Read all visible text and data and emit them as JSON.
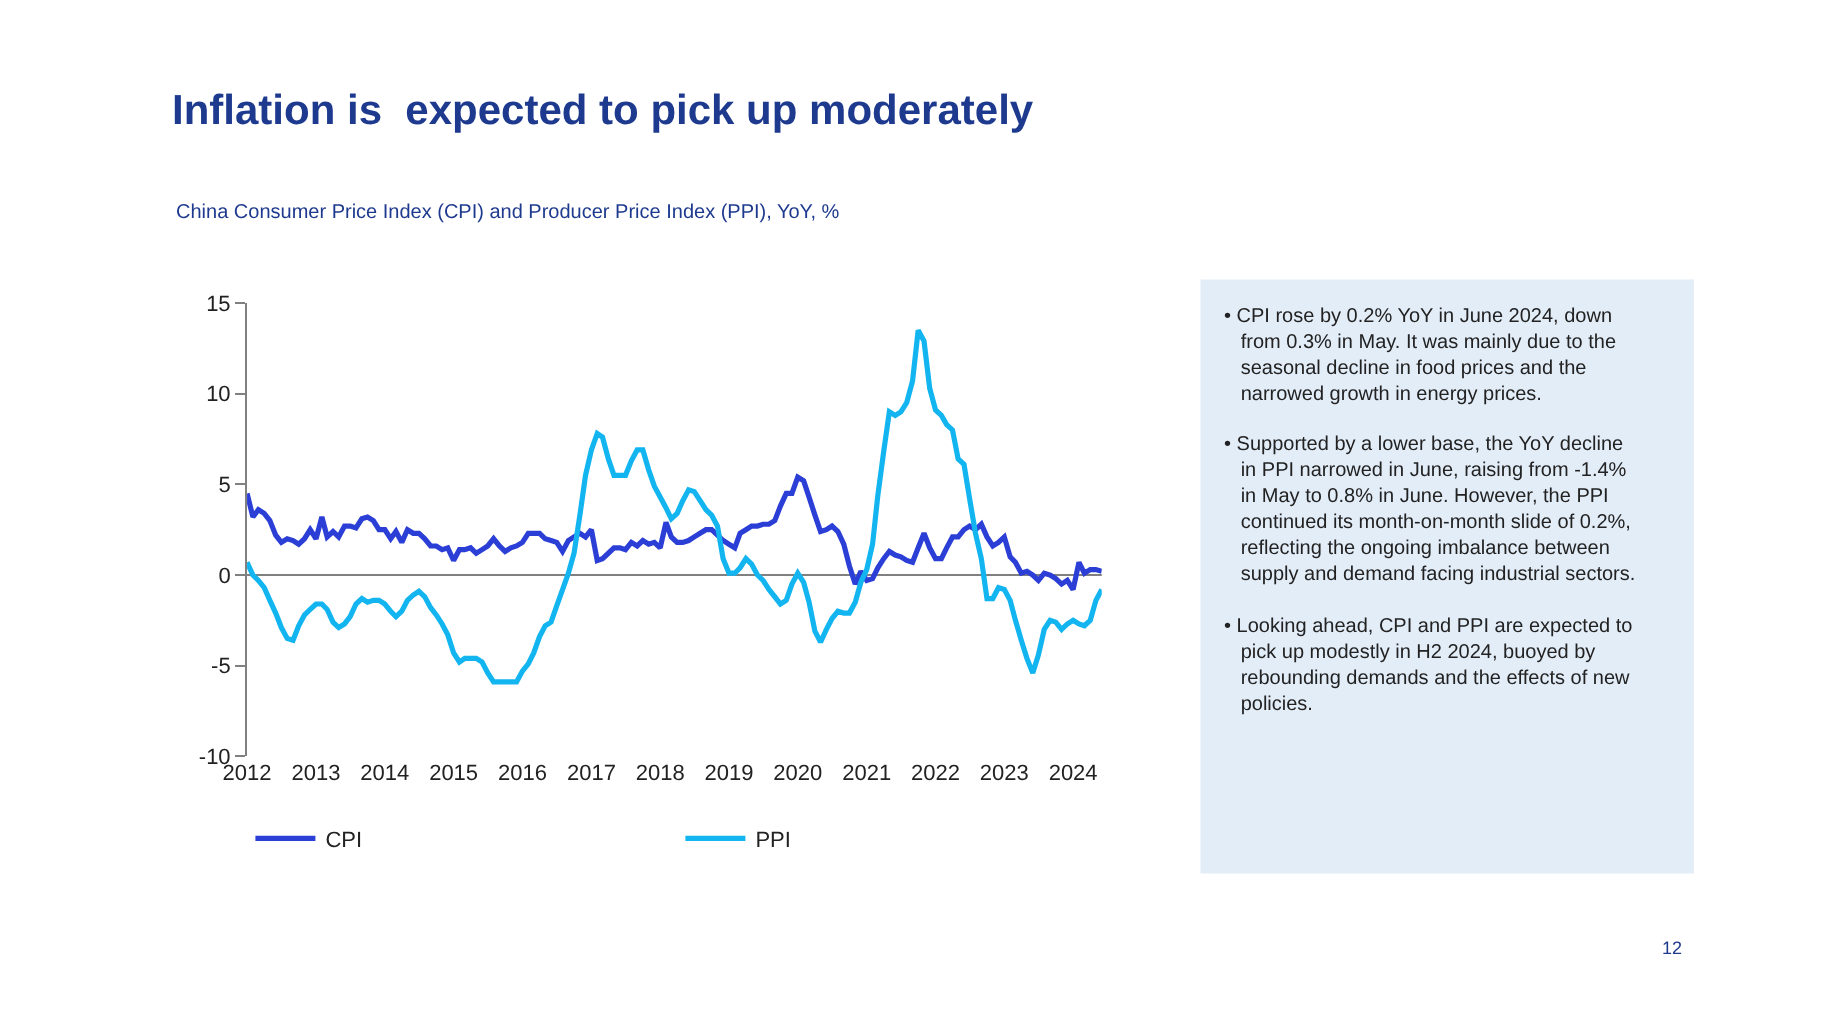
{
  "chart_data": {
    "type": "line",
    "title": "Inflation is  expected to pick up moderately",
    "subtitle": "China Consumer Price Index (CPI) and Producer Price Index (PPI), YoY, %",
    "x": [
      "2012-01",
      "2012-02",
      "2012-03",
      "2012-04",
      "2012-05",
      "2012-06",
      "2012-07",
      "2012-08",
      "2012-09",
      "2012-10",
      "2012-11",
      "2012-12",
      "2013-01",
      "2013-02",
      "2013-03",
      "2013-04",
      "2013-05",
      "2013-06",
      "2013-07",
      "2013-08",
      "2013-09",
      "2013-10",
      "2013-11",
      "2013-12",
      "2014-01",
      "2014-02",
      "2014-03",
      "2014-04",
      "2014-05",
      "2014-06",
      "2014-07",
      "2014-08",
      "2014-09",
      "2014-10",
      "2014-11",
      "2014-12",
      "2015-01",
      "2015-02",
      "2015-03",
      "2015-04",
      "2015-05",
      "2015-06",
      "2015-07",
      "2015-08",
      "2015-09",
      "2015-10",
      "2015-11",
      "2015-12",
      "2016-01",
      "2016-02",
      "2016-03",
      "2016-04",
      "2016-05",
      "2016-06",
      "2016-07",
      "2016-08",
      "2016-09",
      "2016-10",
      "2016-11",
      "2016-12",
      "2017-01",
      "2017-02",
      "2017-03",
      "2017-04",
      "2017-05",
      "2017-06",
      "2017-07",
      "2017-08",
      "2017-09",
      "2017-10",
      "2017-11",
      "2017-12",
      "2018-01",
      "2018-02",
      "2018-03",
      "2018-04",
      "2018-05",
      "2018-06",
      "2018-07",
      "2018-08",
      "2018-09",
      "2018-10",
      "2018-11",
      "2018-12",
      "2019-01",
      "2019-02",
      "2019-03",
      "2019-04",
      "2019-05",
      "2019-06",
      "2019-07",
      "2019-08",
      "2019-09",
      "2019-10",
      "2019-11",
      "2019-12",
      "2020-01",
      "2020-02",
      "2020-03",
      "2020-04",
      "2020-05",
      "2020-06",
      "2020-07",
      "2020-08",
      "2020-09",
      "2020-10",
      "2020-11",
      "2020-12",
      "2021-01",
      "2021-02",
      "2021-03",
      "2021-04",
      "2021-05",
      "2021-06",
      "2021-07",
      "2021-08",
      "2021-09",
      "2021-10",
      "2021-11",
      "2021-12",
      "2022-01",
      "2022-02",
      "2022-03",
      "2022-04",
      "2022-05",
      "2022-06",
      "2022-07",
      "2022-08",
      "2022-09",
      "2022-10",
      "2022-11",
      "2022-12",
      "2023-01",
      "2023-02",
      "2023-03",
      "2023-04",
      "2023-05",
      "2023-06",
      "2023-07",
      "2023-08",
      "2023-09",
      "2023-10",
      "2023-11",
      "2023-12",
      "2024-01",
      "2024-02",
      "2024-03",
      "2024-04",
      "2024-05",
      "2024-06"
    ],
    "series": [
      {
        "name": "CPI",
        "color": "#2b3fd6",
        "values": [
          4.5,
          3.2,
          3.6,
          3.4,
          3.0,
          2.2,
          1.8,
          2.0,
          1.9,
          1.7,
          2.0,
          2.5,
          2.0,
          3.2,
          2.1,
          2.4,
          2.1,
          2.7,
          2.7,
          2.6,
          3.1,
          3.2,
          3.0,
          2.5,
          2.5,
          2.0,
          2.4,
          1.8,
          2.5,
          2.3,
          2.3,
          2.0,
          1.6,
          1.6,
          1.4,
          1.5,
          0.8,
          1.4,
          1.4,
          1.5,
          1.2,
          1.4,
          1.6,
          2.0,
          1.6,
          1.3,
          1.5,
          1.6,
          1.8,
          2.3,
          2.3,
          2.3,
          2.0,
          1.9,
          1.8,
          1.3,
          1.9,
          2.1,
          2.3,
          2.1,
          2.5,
          0.8,
          0.9,
          1.2,
          1.5,
          1.5,
          1.4,
          1.8,
          1.6,
          1.9,
          1.7,
          1.8,
          1.5,
          2.9,
          2.1,
          1.8,
          1.8,
          1.9,
          2.1,
          2.3,
          2.5,
          2.5,
          2.2,
          1.9,
          1.7,
          1.5,
          2.3,
          2.5,
          2.7,
          2.7,
          2.8,
          2.8,
          3.0,
          3.8,
          4.5,
          4.5,
          5.4,
          5.2,
          4.3,
          3.3,
          2.4,
          2.5,
          2.7,
          2.4,
          1.7,
          0.5,
          -0.5,
          0.2,
          -0.3,
          -0.2,
          0.4,
          0.9,
          1.3,
          1.1,
          1.0,
          0.8,
          0.7,
          1.5,
          2.3,
          1.5,
          0.9,
          0.9,
          1.5,
          2.1,
          2.1,
          2.5,
          2.7,
          2.5,
          2.8,
          2.1,
          1.6,
          1.8,
          2.1,
          1.0,
          0.7,
          0.1,
          0.2,
          0.0,
          -0.3,
          0.1,
          0.0,
          -0.2,
          -0.5,
          -0.3,
          -0.8,
          0.7,
          0.1,
          0.3,
          0.3,
          0.2
        ]
      },
      {
        "name": "PPI",
        "color": "#13b5f0",
        "values": [
          0.7,
          0.0,
          -0.3,
          -0.7,
          -1.4,
          -2.1,
          -2.9,
          -3.5,
          -3.6,
          -2.8,
          -2.2,
          -1.9,
          -1.6,
          -1.6,
          -1.9,
          -2.6,
          -2.9,
          -2.7,
          -2.3,
          -1.6,
          -1.3,
          -1.5,
          -1.4,
          -1.4,
          -1.6,
          -2.0,
          -2.3,
          -2.0,
          -1.4,
          -1.1,
          -0.9,
          -1.2,
          -1.8,
          -2.2,
          -2.7,
          -3.3,
          -4.3,
          -4.8,
          -4.6,
          -4.6,
          -4.6,
          -4.8,
          -5.4,
          -5.9,
          -5.9,
          -5.9,
          -5.9,
          -5.9,
          -5.3,
          -4.9,
          -4.3,
          -3.4,
          -2.8,
          -2.6,
          -1.7,
          -0.8,
          0.1,
          1.2,
          3.3,
          5.5,
          6.9,
          7.8,
          7.6,
          6.4,
          5.5,
          5.5,
          5.5,
          6.3,
          6.9,
          6.9,
          5.8,
          4.9,
          4.3,
          3.7,
          3.1,
          3.4,
          4.1,
          4.7,
          4.6,
          4.1,
          3.6,
          3.3,
          2.7,
          0.9,
          0.1,
          0.1,
          0.4,
          0.9,
          0.6,
          0.0,
          -0.3,
          -0.8,
          -1.2,
          -1.6,
          -1.4,
          -0.5,
          0.1,
          -0.4,
          -1.5,
          -3.1,
          -3.7,
          -3.0,
          -2.4,
          -2.0,
          -2.1,
          -2.1,
          -1.5,
          -0.4,
          0.3,
          1.7,
          4.4,
          6.8,
          9.0,
          8.8,
          9.0,
          9.5,
          10.7,
          13.5,
          12.9,
          10.3,
          9.1,
          8.8,
          8.3,
          8.0,
          6.4,
          6.1,
          4.2,
          2.3,
          0.9,
          -1.3,
          -1.3,
          -0.7,
          -0.8,
          -1.4,
          -2.5,
          -3.6,
          -4.6,
          -5.4,
          -4.4,
          -3.0,
          -2.5,
          -2.6,
          -3.0,
          -2.7,
          -2.5,
          -2.7,
          -2.8,
          -2.5,
          -1.4,
          -0.8
        ]
      }
    ],
    "xlim": [
      "2012-01",
      "2024-06"
    ],
    "xticks": [
      "2012",
      "2013",
      "2014",
      "2015",
      "2016",
      "2017",
      "2018",
      "2019",
      "2020",
      "2021",
      "2022",
      "2023",
      "2024"
    ],
    "ylim": [
      -10,
      15
    ],
    "yticks": [
      -10,
      -5,
      0,
      5,
      10,
      15
    ],
    "ref_lines": [
      {
        "axis": "y",
        "value": 0,
        "color": "#808080"
      }
    ],
    "grid": false,
    "legend": "bottom",
    "marker": "none",
    "line_style": "solid",
    "annotations": [
      "• CPI rose by 0.2% YoY in June 2024, down from 0.3% in May. It was mainly due to the seasonal decline in food prices and the narrowed growth in energy prices.",
      "• Supported by a lower base, the YoY decline in PPI narrowed in June, raising from -1.4% in May to 0.8% in June. However, the PPI continued its month-on-month slide of 0.2%, reflecting the ongoing imbalance between supply and demand facing industrial sectors.",
      "• Looking ahead, CPI and PPI are expected to pick up modestly in H2 2024, buoyed by rebounding demands and the effects of new policies.",
      "12"
    ]
  }
}
